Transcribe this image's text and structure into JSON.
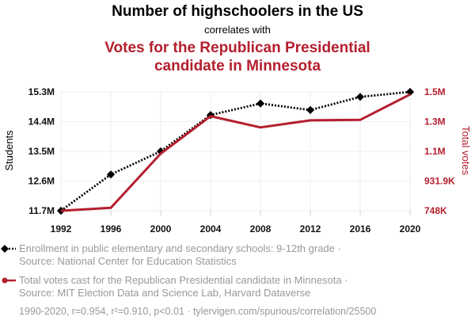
{
  "header": {
    "title": "Number of highschoolers in the US",
    "connector": "correlates with",
    "subtitle_line1": "Votes for the Republican Presidential",
    "subtitle_line2": "candidate in Minnesota"
  },
  "legend": {
    "series1_line1": "Enrollment in public elementary and secondary schools: 9-12th grade ·",
    "series1_line2": "Source: National Center for Education Statistics",
    "series2_line1": "Total votes cast for the Republican Presidential candidate in Minnesota ·",
    "series2_line2": "Source: MIT Election Data and Science Lab, Harvard Dataverse"
  },
  "footer": {
    "stats": "1990-2020, r=0.954, r²=0.910, p<0.01 · tylervigen.com/spurious/correlation/25500"
  },
  "colors": {
    "series1": "#000000",
    "series2": "#b41f2e",
    "grid": "#eeeeee"
  },
  "chart_data": {
    "type": "line",
    "x": [
      1992,
      1996,
      2000,
      2004,
      2008,
      2012,
      2016,
      2020
    ],
    "xlabel": "",
    "y_left_label": "Students",
    "y_right_label": "Total votes",
    "y_left_ticks": [
      "11.7M",
      "12.6M",
      "13.5M",
      "14.4M",
      "15.3M"
    ],
    "y_right_ticks": [
      "748K",
      "931.9K",
      "1.1M",
      "1.3M",
      "1.5M"
    ],
    "y_left_range": [
      11700000,
      15300000
    ],
    "y_right_range": [
      748000,
      1500000
    ],
    "grid": true,
    "series": [
      {
        "name": "Enrollment in public elementary and secondary schools: 9-12th grade",
        "axis": "left",
        "style": "dotted",
        "marker": "diamond",
        "values": [
          11700000,
          12800000,
          13500000,
          14600000,
          14950000,
          14750000,
          15150000,
          15300000
        ]
      },
      {
        "name": "Total votes cast for the Republican Presidential candidate in Minnesota",
        "axis": "right",
        "style": "solid",
        "marker": "none",
        "values": [
          747800,
          766500,
          1109700,
          1346700,
          1275400,
          1320200,
          1323200,
          1484100
        ]
      }
    ]
  }
}
